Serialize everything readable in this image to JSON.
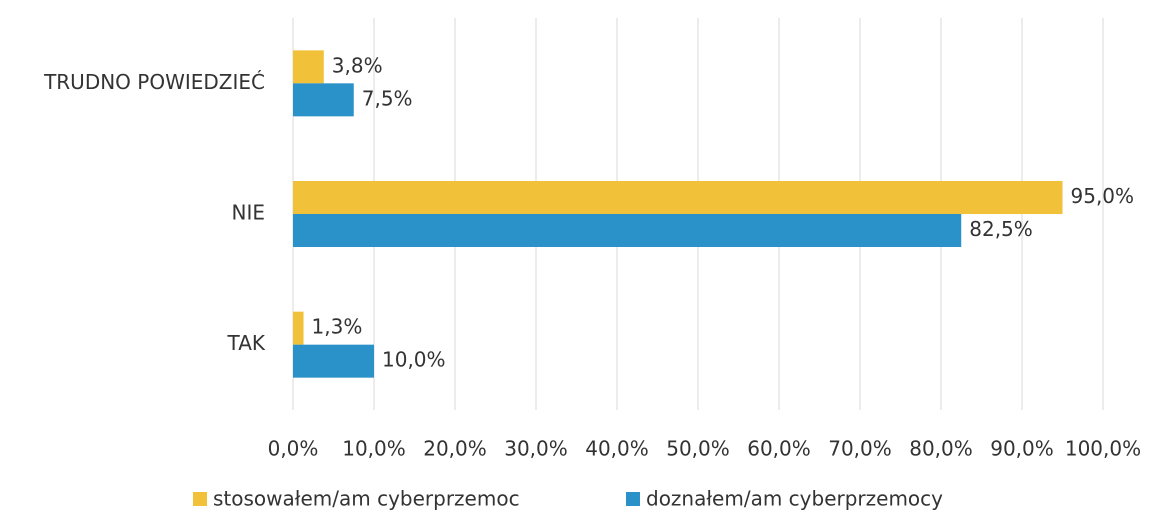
{
  "chart_data": {
    "type": "hbar",
    "categories": [
      "TRUDNO POWIEDZIEĆ",
      "NIE",
      "TAK"
    ],
    "series": [
      {
        "name": "stosowałem/am cyberprzemoc",
        "color": "#f2c13a",
        "values": [
          3.8,
          95.0,
          1.3
        ],
        "value_labels": [
          "3,8%",
          "95,0%",
          "1,3%"
        ]
      },
      {
        "name": "doznałem/am cyberprzemocy",
        "color": "#2b91c9",
        "values": [
          7.5,
          82.5,
          10.0
        ],
        "value_labels": [
          "7,5%",
          "82,5%",
          "10,0%"
        ]
      }
    ],
    "xlim": [
      0,
      100
    ],
    "xticks": [
      {
        "value": 0,
        "label": "0,0%"
      },
      {
        "value": 10,
        "label": "10,0%"
      },
      {
        "value": 20,
        "label": "20,0%"
      },
      {
        "value": 30,
        "label": "30,0%"
      },
      {
        "value": 40,
        "label": "40,0%"
      },
      {
        "value": 50,
        "label": "50,0%"
      },
      {
        "value": 60,
        "label": "60,0%"
      },
      {
        "value": 70,
        "label": "70,0%"
      },
      {
        "value": 80,
        "label": "80,0%"
      },
      {
        "value": 90,
        "label": "90,0%"
      },
      {
        "value": 100,
        "label": "100,0%"
      }
    ],
    "grid": true,
    "legend": "bottom"
  }
}
